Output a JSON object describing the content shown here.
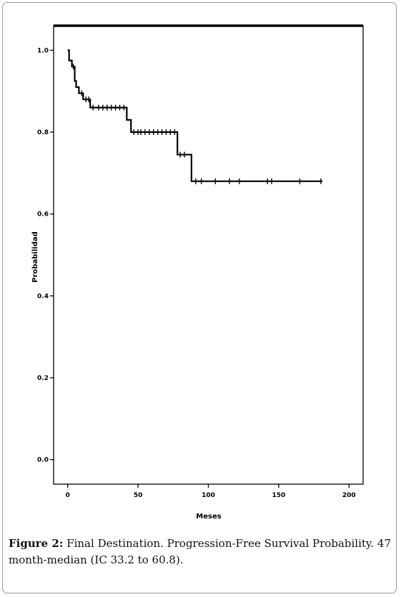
{
  "chart_data": {
    "type": "line",
    "subtype": "kaplan-meier-step",
    "xlabel": "Meses",
    "ylabel": "Probabilidad",
    "xlim": [
      -10,
      210
    ],
    "ylim": [
      -0.06,
      1.06
    ],
    "xticks": [
      0,
      50,
      100,
      150,
      200
    ],
    "xtick_labels": [
      "0",
      "50",
      "100",
      "150",
      "200"
    ],
    "yticks": [
      0.0,
      0.2,
      0.4,
      0.6,
      0.8,
      1.0
    ],
    "ytick_labels": [
      "0.0",
      "0.2",
      "0.4",
      "0.6",
      "0.8",
      "1.0"
    ],
    "grid": false,
    "line_color": "#000000",
    "series": [
      {
        "steps": [
          [
            0,
            1.0
          ],
          [
            1,
            0.975
          ],
          [
            3,
            0.96
          ],
          [
            5,
            0.925
          ],
          [
            6,
            0.91
          ],
          [
            8,
            0.895
          ],
          [
            11,
            0.88
          ],
          [
            16,
            0.86
          ],
          [
            42,
            0.83
          ],
          [
            45,
            0.8
          ],
          [
            78,
            0.745
          ],
          [
            88,
            0.68
          ],
          [
            181,
            0.68
          ]
        ],
        "censored": [
          [
            4,
            0.96
          ],
          [
            10,
            0.895
          ],
          [
            13,
            0.88
          ],
          [
            15,
            0.88
          ],
          [
            18,
            0.86
          ],
          [
            22,
            0.86
          ],
          [
            25,
            0.86
          ],
          [
            28,
            0.86
          ],
          [
            31,
            0.86
          ],
          [
            34,
            0.86
          ],
          [
            37,
            0.86
          ],
          [
            40,
            0.86
          ],
          [
            47,
            0.8
          ],
          [
            50,
            0.8
          ],
          [
            52,
            0.8
          ],
          [
            55,
            0.8
          ],
          [
            58,
            0.8
          ],
          [
            61,
            0.8
          ],
          [
            64,
            0.8
          ],
          [
            67,
            0.8
          ],
          [
            70,
            0.8
          ],
          [
            73,
            0.8
          ],
          [
            76,
            0.8
          ],
          [
            80,
            0.745
          ],
          [
            83,
            0.745
          ],
          [
            91,
            0.68
          ],
          [
            95,
            0.68
          ],
          [
            105,
            0.68
          ],
          [
            115,
            0.68
          ],
          [
            122,
            0.68
          ],
          [
            142,
            0.68
          ],
          [
            145,
            0.68
          ],
          [
            165,
            0.68
          ],
          [
            180,
            0.68
          ]
        ]
      }
    ]
  },
  "caption": {
    "label": "Figure 2:",
    "text": "Final Destination. Progression-Free Survival Probability. 47 month-median (IC 33.2 to 60.8)."
  }
}
